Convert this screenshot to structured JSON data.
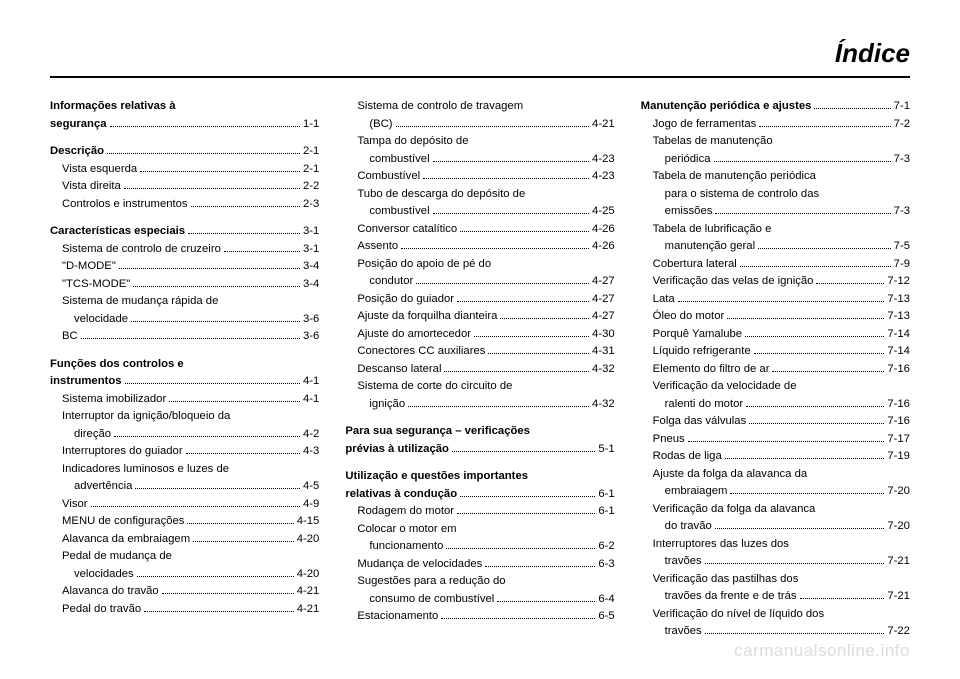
{
  "title": "Índice",
  "watermark": "carmanualsonline.info",
  "col1": [
    {
      "type": "entry",
      "bold": true,
      "label": "Informações relativas à"
    },
    {
      "type": "entry",
      "bold": true,
      "label": "segurança",
      "page": "1-1"
    },
    {
      "type": "spacer"
    },
    {
      "type": "entry",
      "bold": true,
      "label": "Descrição",
      "page": "2-1"
    },
    {
      "type": "entry",
      "indent": 1,
      "label": "Vista esquerda",
      "page": "2-1"
    },
    {
      "type": "entry",
      "indent": 1,
      "label": "Vista direita",
      "page": "2-2"
    },
    {
      "type": "entry",
      "indent": 1,
      "label": "Controlos e instrumentos",
      "page": "2-3"
    },
    {
      "type": "spacer"
    },
    {
      "type": "entry",
      "bold": true,
      "label": "Características especiais",
      "page": "3-1"
    },
    {
      "type": "entry",
      "indent": 1,
      "label": "Sistema de controlo de cruzeiro",
      "page": "3-1"
    },
    {
      "type": "entry",
      "indent": 1,
      "label": "\"D-MODE\"",
      "page": "3-4"
    },
    {
      "type": "entry",
      "indent": 1,
      "label": "\"TCS-MODE\"",
      "page": "3-4"
    },
    {
      "type": "entry",
      "indent": 1,
      "label": "Sistema de mudança rápida de"
    },
    {
      "type": "entry",
      "cont": 1,
      "label": "velocidade",
      "page": "3-6"
    },
    {
      "type": "entry",
      "indent": 1,
      "label": "BC",
      "page": "3-6"
    },
    {
      "type": "spacer"
    },
    {
      "type": "entry",
      "bold": true,
      "label": "Funções dos controlos e"
    },
    {
      "type": "entry",
      "bold": true,
      "label": "instrumentos",
      "page": "4-1"
    },
    {
      "type": "entry",
      "indent": 1,
      "label": "Sistema imobilizador",
      "page": "4-1"
    },
    {
      "type": "entry",
      "indent": 1,
      "label": "Interruptor da ignição/bloqueio da"
    },
    {
      "type": "entry",
      "cont": 1,
      "label": "direção",
      "page": "4-2"
    },
    {
      "type": "entry",
      "indent": 1,
      "label": "Interruptores do guiador",
      "page": "4-3"
    },
    {
      "type": "entry",
      "indent": 1,
      "label": "Indicadores luminosos e luzes de"
    },
    {
      "type": "entry",
      "cont": 1,
      "label": "advertência",
      "page": "4-5"
    },
    {
      "type": "entry",
      "indent": 1,
      "label": "Visor",
      "page": "4-9"
    },
    {
      "type": "entry",
      "indent": 1,
      "label": "MENU de configurações",
      "page": "4-15"
    },
    {
      "type": "entry",
      "indent": 1,
      "label": "Alavanca da embraiagem",
      "page": "4-20"
    },
    {
      "type": "entry",
      "indent": 1,
      "label": "Pedal de mudança de"
    },
    {
      "type": "entry",
      "cont": 1,
      "label": "velocidades",
      "page": "4-20"
    },
    {
      "type": "entry",
      "indent": 1,
      "label": "Alavanca do travão",
      "page": "4-21"
    },
    {
      "type": "entry",
      "indent": 1,
      "label": "Pedal do travão",
      "page": "4-21"
    }
  ],
  "col2": [
    {
      "type": "entry",
      "indent": 1,
      "label": "Sistema de controlo de travagem"
    },
    {
      "type": "entry",
      "cont": 1,
      "label": "(BC)",
      "page": "4-21"
    },
    {
      "type": "entry",
      "indent": 1,
      "label": "Tampa do depósito de"
    },
    {
      "type": "entry",
      "cont": 1,
      "label": "combustível",
      "page": "4-23"
    },
    {
      "type": "entry",
      "indent": 1,
      "label": "Combustível",
      "page": "4-23"
    },
    {
      "type": "entry",
      "indent": 1,
      "label": "Tubo de descarga do depósito de"
    },
    {
      "type": "entry",
      "cont": 1,
      "label": "combustível",
      "page": "4-25"
    },
    {
      "type": "entry",
      "indent": 1,
      "label": "Conversor catalítico",
      "page": "4-26"
    },
    {
      "type": "entry",
      "indent": 1,
      "label": "Assento",
      "page": "4-26"
    },
    {
      "type": "entry",
      "indent": 1,
      "label": "Posição do apoio de pé do"
    },
    {
      "type": "entry",
      "cont": 1,
      "label": "condutor",
      "page": "4-27"
    },
    {
      "type": "entry",
      "indent": 1,
      "label": "Posição do guiador",
      "page": "4-27"
    },
    {
      "type": "entry",
      "indent": 1,
      "label": "Ajuste da forquilha dianteira",
      "page": "4-27"
    },
    {
      "type": "entry",
      "indent": 1,
      "label": "Ajuste do amortecedor",
      "page": "4-30"
    },
    {
      "type": "entry",
      "indent": 1,
      "label": "Conectores CC auxiliares",
      "page": "4-31"
    },
    {
      "type": "entry",
      "indent": 1,
      "label": "Descanso lateral",
      "page": "4-32"
    },
    {
      "type": "entry",
      "indent": 1,
      "label": "Sistema de corte do circuito de"
    },
    {
      "type": "entry",
      "cont": 1,
      "label": "ignição",
      "page": "4-32"
    },
    {
      "type": "spacer"
    },
    {
      "type": "entry",
      "bold": true,
      "label": "Para sua segurança – verificações"
    },
    {
      "type": "entry",
      "bold": true,
      "label": "prévias à utilização",
      "page": "5-1"
    },
    {
      "type": "spacer"
    },
    {
      "type": "entry",
      "bold": true,
      "label": "Utilização e questões importantes"
    },
    {
      "type": "entry",
      "bold": true,
      "label": "relativas à condução",
      "page": "6-1"
    },
    {
      "type": "entry",
      "indent": 1,
      "label": "Rodagem do motor",
      "page": "6-1"
    },
    {
      "type": "entry",
      "indent": 1,
      "label": "Colocar o motor em"
    },
    {
      "type": "entry",
      "cont": 1,
      "label": "funcionamento",
      "page": "6-2"
    },
    {
      "type": "entry",
      "indent": 1,
      "label": "Mudança de velocidades",
      "page": "6-3"
    },
    {
      "type": "entry",
      "indent": 1,
      "label": "Sugestões para a redução do"
    },
    {
      "type": "entry",
      "cont": 1,
      "label": "consumo de combustível",
      "page": "6-4"
    },
    {
      "type": "entry",
      "indent": 1,
      "label": "Estacionamento",
      "page": "6-5"
    }
  ],
  "col3": [
    {
      "type": "entry",
      "bold": true,
      "label": "Manutenção periódica e ajustes",
      "page": "7-1"
    },
    {
      "type": "entry",
      "indent": 1,
      "label": "Jogo de ferramentas",
      "page": "7-2"
    },
    {
      "type": "entry",
      "indent": 1,
      "label": "Tabelas de manutenção"
    },
    {
      "type": "entry",
      "cont": 1,
      "label": "periódica",
      "page": "7-3"
    },
    {
      "type": "entry",
      "indent": 1,
      "label": "Tabela de manutenção periódica"
    },
    {
      "type": "entry",
      "cont": 1,
      "label": "para o sistema de controlo das"
    },
    {
      "type": "entry",
      "cont": 1,
      "label": "emissões",
      "page": "7-3"
    },
    {
      "type": "entry",
      "indent": 1,
      "label": "Tabela de lubrificação e"
    },
    {
      "type": "entry",
      "cont": 1,
      "label": "manutenção geral",
      "page": "7-5"
    },
    {
      "type": "entry",
      "indent": 1,
      "label": "Cobertura lateral",
      "page": "7-9"
    },
    {
      "type": "entry",
      "indent": 1,
      "label": "Verificação das velas de ignição",
      "page": "7-12"
    },
    {
      "type": "entry",
      "indent": 1,
      "label": "Lata",
      "page": "7-13"
    },
    {
      "type": "entry",
      "indent": 1,
      "label": "Óleo do motor",
      "page": "7-13"
    },
    {
      "type": "entry",
      "indent": 1,
      "label": "Porquê Yamalube",
      "page": "7-14"
    },
    {
      "type": "entry",
      "indent": 1,
      "label": "Líquido refrigerante",
      "page": "7-14"
    },
    {
      "type": "entry",
      "indent": 1,
      "label": "Elemento do filtro de ar",
      "page": "7-16"
    },
    {
      "type": "entry",
      "indent": 1,
      "label": "Verificação da velocidade de"
    },
    {
      "type": "entry",
      "cont": 1,
      "label": "ralenti do motor",
      "page": "7-16"
    },
    {
      "type": "entry",
      "indent": 1,
      "label": "Folga das válvulas",
      "page": "7-16"
    },
    {
      "type": "entry",
      "indent": 1,
      "label": "Pneus",
      "page": "7-17"
    },
    {
      "type": "entry",
      "indent": 1,
      "label": "Rodas de liga",
      "page": "7-19"
    },
    {
      "type": "entry",
      "indent": 1,
      "label": "Ajuste da folga da alavanca da"
    },
    {
      "type": "entry",
      "cont": 1,
      "label": "embraiagem",
      "page": "7-20"
    },
    {
      "type": "entry",
      "indent": 1,
      "label": "Verificação da folga da alavanca"
    },
    {
      "type": "entry",
      "cont": 1,
      "label": "do travão",
      "page": "7-20"
    },
    {
      "type": "entry",
      "indent": 1,
      "label": "Interruptores das luzes dos"
    },
    {
      "type": "entry",
      "cont": 1,
      "label": "travões",
      "page": "7-21"
    },
    {
      "type": "entry",
      "indent": 1,
      "label": "Verificação das pastilhas dos"
    },
    {
      "type": "entry",
      "cont": 1,
      "label": "travões da frente e de trás",
      "page": "7-21"
    },
    {
      "type": "entry",
      "indent": 1,
      "label": "Verificação do nível de líquido dos"
    },
    {
      "type": "entry",
      "cont": 1,
      "label": "travões",
      "page": "7-22"
    }
  ]
}
